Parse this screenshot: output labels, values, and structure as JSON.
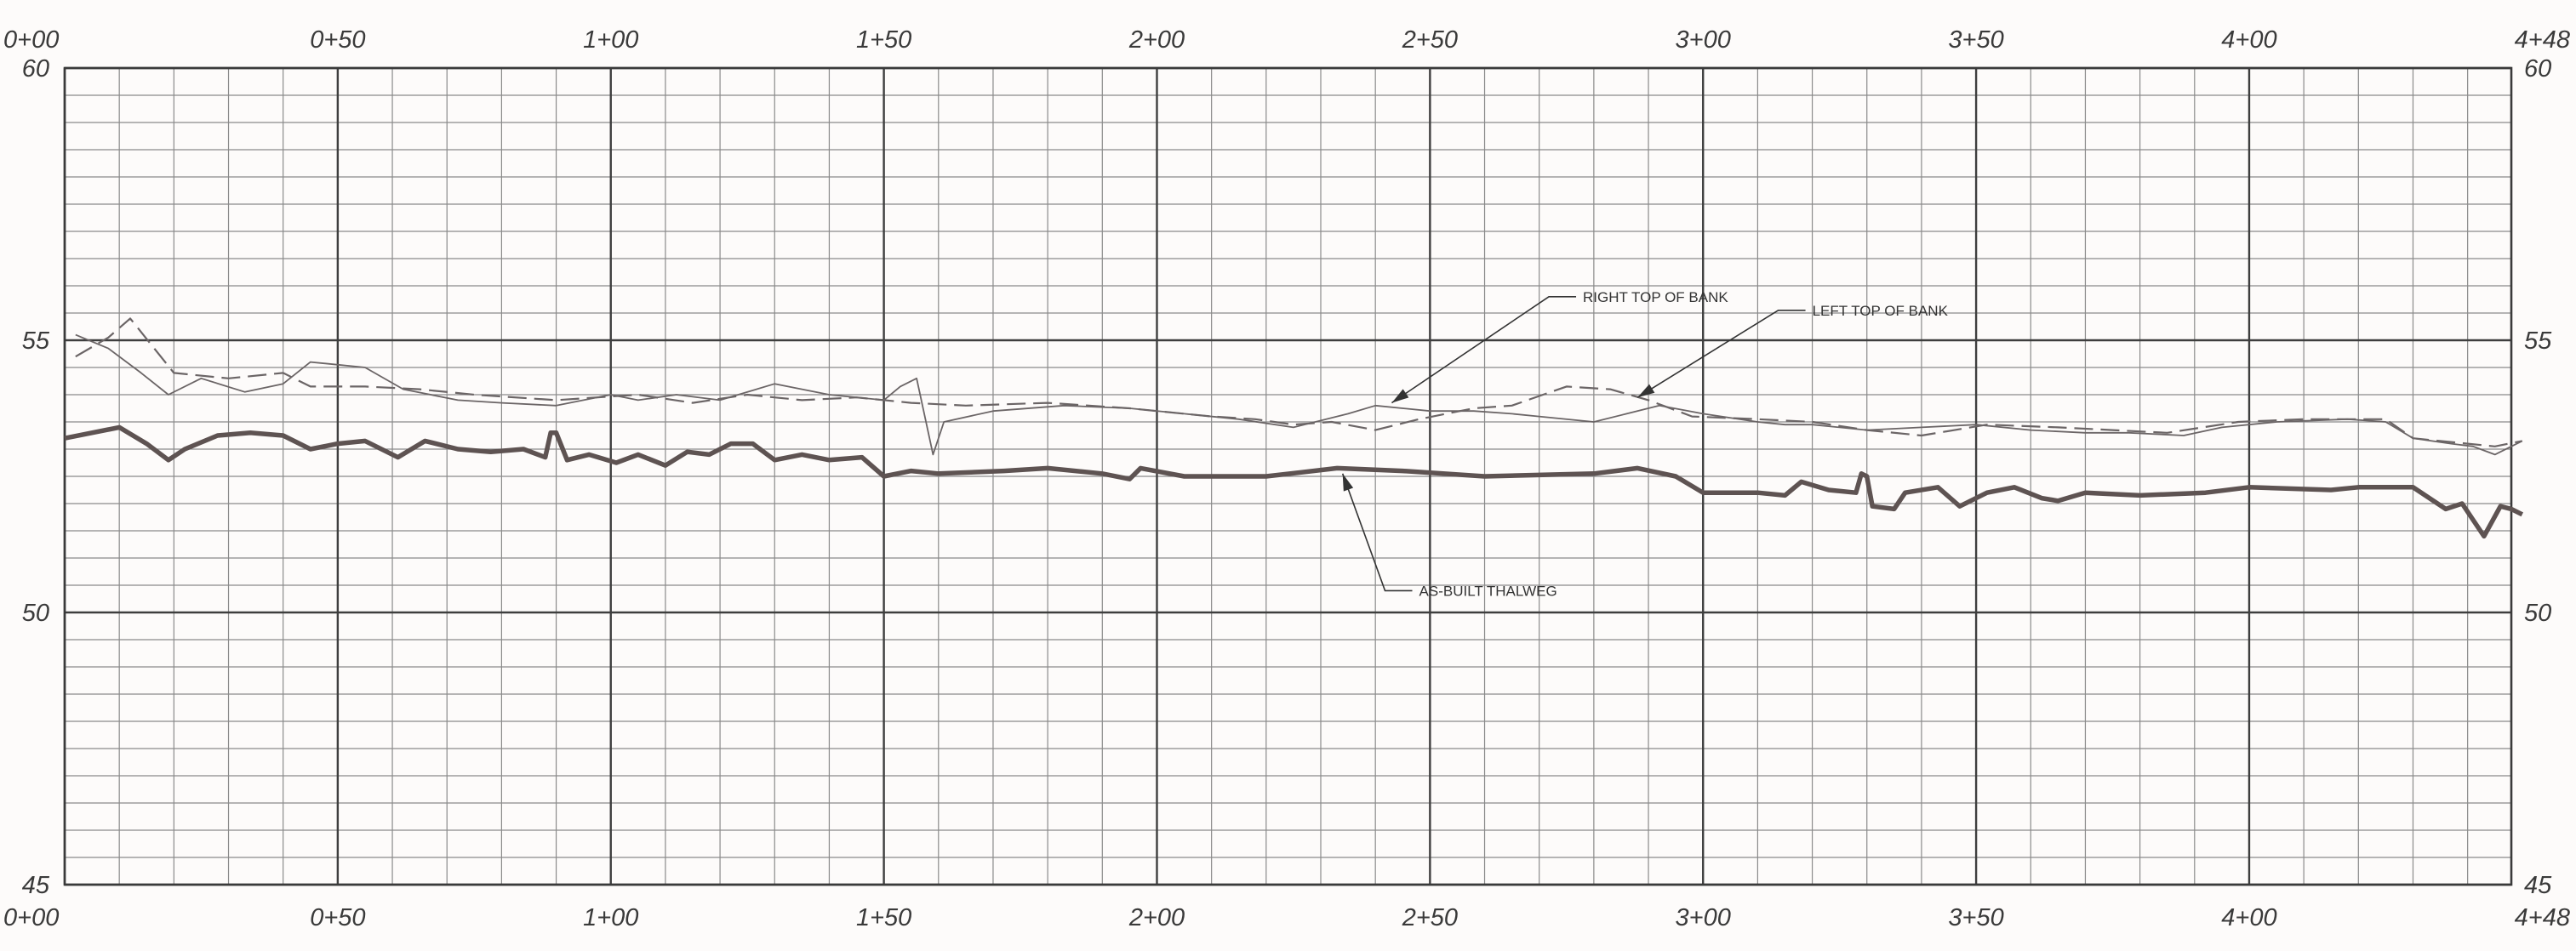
{
  "chart_data": {
    "type": "line",
    "title": "",
    "xlabel": "",
    "ylabel": "",
    "xlim": [
      0,
      448
    ],
    "ylim": [
      45,
      60
    ],
    "grid": true,
    "x_ticks": [
      0,
      50,
      100,
      150,
      200,
      250,
      300,
      350,
      400,
      448
    ],
    "x_tick_labels": [
      "0+00",
      "0+50",
      "1+00",
      "1+50",
      "2+00",
      "2+50",
      "3+00",
      "3+50",
      "4+00",
      "4+48"
    ],
    "y_ticks": [
      45,
      50,
      55,
      60
    ],
    "y_tick_labels": [
      "45",
      "50",
      "55",
      "60"
    ],
    "series": [
      {
        "name": "AS-BUILT THALWEG",
        "style": "solid-bold",
        "color": "#5e5352",
        "points": [
          [
            0,
            53.2
          ],
          [
            10,
            53.4
          ],
          [
            15,
            53.1
          ],
          [
            19,
            52.8
          ],
          [
            22,
            53
          ],
          [
            28,
            53.25
          ],
          [
            34,
            53.3
          ],
          [
            40,
            53.25
          ],
          [
            45,
            53
          ],
          [
            50,
            53.1
          ],
          [
            55,
            53.15
          ],
          [
            61,
            52.85
          ],
          [
            66,
            53.15
          ],
          [
            72,
            53
          ],
          [
            78,
            52.95
          ],
          [
            84,
            53
          ],
          [
            88,
            52.85
          ],
          [
            89,
            53.3
          ],
          [
            90,
            53.3
          ],
          [
            92,
            52.8
          ],
          [
            96,
            52.9
          ],
          [
            101,
            52.75
          ],
          [
            105,
            52.9
          ],
          [
            110,
            52.7
          ],
          [
            114,
            52.95
          ],
          [
            118,
            52.9
          ],
          [
            122,
            53.1
          ],
          [
            126,
            53.1
          ],
          [
            130,
            52.8
          ],
          [
            135,
            52.9
          ],
          [
            140,
            52.8
          ],
          [
            146,
            52.85
          ],
          [
            150,
            52.5
          ],
          [
            155,
            52.6
          ],
          [
            160,
            52.55
          ],
          [
            172,
            52.6
          ],
          [
            180,
            52.65
          ],
          [
            190,
            52.55
          ],
          [
            195,
            52.45
          ],
          [
            197,
            52.65
          ],
          [
            205,
            52.5
          ],
          [
            220,
            52.5
          ],
          [
            233,
            52.65
          ],
          [
            245,
            52.6
          ],
          [
            260,
            52.5
          ],
          [
            280,
            52.55
          ],
          [
            288,
            52.65
          ],
          [
            295,
            52.5
          ],
          [
            300,
            52.2
          ],
          [
            310,
            52.2
          ],
          [
            315,
            52.15
          ],
          [
            318,
            52.4
          ],
          [
            323,
            52.25
          ],
          [
            328,
            52.2
          ],
          [
            329,
            52.55
          ],
          [
            330,
            52.5
          ],
          [
            331,
            51.95
          ],
          [
            335,
            51.9
          ],
          [
            337,
            52.2
          ],
          [
            343,
            52.3
          ],
          [
            347,
            51.95
          ],
          [
            352,
            52.2
          ],
          [
            357,
            52.3
          ],
          [
            362,
            52.1
          ],
          [
            365,
            52.05
          ],
          [
            370,
            52.2
          ],
          [
            380,
            52.15
          ],
          [
            392,
            52.2
          ],
          [
            400,
            52.3
          ],
          [
            415,
            52.25
          ],
          [
            420,
            52.3
          ],
          [
            430,
            52.3
          ],
          [
            436,
            51.9
          ],
          [
            439,
            52
          ],
          [
            443,
            51.4
          ],
          [
            446,
            51.95
          ],
          [
            448,
            51.9
          ],
          [
            450,
            51.8
          ]
        ]
      },
      {
        "name": "RIGHT TOP OF BANK",
        "style": "thin-solid",
        "color": "#6b6566",
        "points": [
          [
            2,
            55.1
          ],
          [
            8,
            54.85
          ],
          [
            14,
            54.4
          ],
          [
            19,
            54
          ],
          [
            25,
            54.3
          ],
          [
            33,
            54.05
          ],
          [
            40,
            54.2
          ],
          [
            45,
            54.6
          ],
          [
            55,
            54.5
          ],
          [
            62,
            54.1
          ],
          [
            72,
            53.9
          ],
          [
            80,
            53.85
          ],
          [
            90,
            53.8
          ],
          [
            100,
            54
          ],
          [
            105,
            53.9
          ],
          [
            112,
            54
          ],
          [
            120,
            53.9
          ],
          [
            130,
            54.2
          ],
          [
            140,
            54
          ],
          [
            150,
            53.9
          ],
          [
            153,
            54.15
          ],
          [
            156,
            54.3
          ],
          [
            159,
            52.9
          ],
          [
            161,
            53.5
          ],
          [
            170,
            53.7
          ],
          [
            183,
            53.8
          ],
          [
            195,
            53.75
          ],
          [
            205,
            53.65
          ],
          [
            215,
            53.55
          ],
          [
            225,
            53.4
          ],
          [
            235,
            53.65
          ],
          [
            240,
            53.8
          ],
          [
            250,
            53.7
          ],
          [
            258,
            53.7
          ],
          [
            265,
            53.65
          ],
          [
            270,
            53.6
          ],
          [
            280,
            53.5
          ],
          [
            286,
            53.65
          ],
          [
            292,
            53.8
          ],
          [
            300,
            53.65
          ],
          [
            310,
            53.5
          ],
          [
            315,
            53.45
          ],
          [
            320,
            53.45
          ],
          [
            330,
            53.35
          ],
          [
            340,
            53.4
          ],
          [
            350,
            53.45
          ],
          [
            360,
            53.35
          ],
          [
            370,
            53.3
          ],
          [
            378,
            53.3
          ],
          [
            388,
            53.25
          ],
          [
            395,
            53.4
          ],
          [
            405,
            53.5
          ],
          [
            418,
            53.55
          ],
          [
            425,
            53.5
          ],
          [
            430,
            53.2
          ],
          [
            437,
            53.1
          ],
          [
            441,
            53.05
          ],
          [
            445,
            52.9
          ],
          [
            450,
            53.15
          ]
        ]
      },
      {
        "name": "LEFT TOP OF BANK",
        "style": "dashed",
        "color": "#6b6566",
        "points": [
          [
            2,
            54.7
          ],
          [
            8,
            55.05
          ],
          [
            12,
            55.4
          ],
          [
            16,
            54.9
          ],
          [
            20,
            54.4
          ],
          [
            30,
            54.3
          ],
          [
            40,
            54.4
          ],
          [
            45,
            54.15
          ],
          [
            55,
            54.15
          ],
          [
            65,
            54.1
          ],
          [
            75,
            54
          ],
          [
            90,
            53.9
          ],
          [
            105,
            54
          ],
          [
            115,
            53.85
          ],
          [
            125,
            54
          ],
          [
            135,
            53.9
          ],
          [
            145,
            53.95
          ],
          [
            155,
            53.85
          ],
          [
            165,
            53.8
          ],
          [
            180,
            53.85
          ],
          [
            195,
            53.75
          ],
          [
            210,
            53.6
          ],
          [
            218,
            53.55
          ],
          [
            225,
            53.45
          ],
          [
            232,
            53.5
          ],
          [
            240,
            53.35
          ],
          [
            248,
            53.55
          ],
          [
            258,
            53.75
          ],
          [
            265,
            53.8
          ],
          [
            275,
            54.15
          ],
          [
            283,
            54.1
          ],
          [
            290,
            53.9
          ],
          [
            298,
            53.6
          ],
          [
            310,
            53.55
          ],
          [
            320,
            53.5
          ],
          [
            330,
            53.35
          ],
          [
            340,
            53.25
          ],
          [
            352,
            53.45
          ],
          [
            365,
            53.4
          ],
          [
            375,
            53.35
          ],
          [
            385,
            53.3
          ],
          [
            398,
            53.5
          ],
          [
            410,
            53.55
          ],
          [
            425,
            53.55
          ],
          [
            430,
            53.2
          ],
          [
            440,
            53.1
          ],
          [
            445,
            53.05
          ],
          [
            450,
            53.15
          ]
        ]
      }
    ],
    "annotations": [
      {
        "text": "RIGHT TOP OF BANK",
        "target": [
          243,
          53.85
        ],
        "label_at": [
          278,
          55.8
        ]
      },
      {
        "text": "LEFT TOP OF BANK",
        "target": [
          288,
          53.95
        ],
        "label_at": [
          320,
          55.55
        ]
      },
      {
        "text": "AS-BUILT THALWEG",
        "target": [
          234,
          52.55
        ],
        "label_at": [
          248,
          50.4
        ]
      }
    ]
  }
}
